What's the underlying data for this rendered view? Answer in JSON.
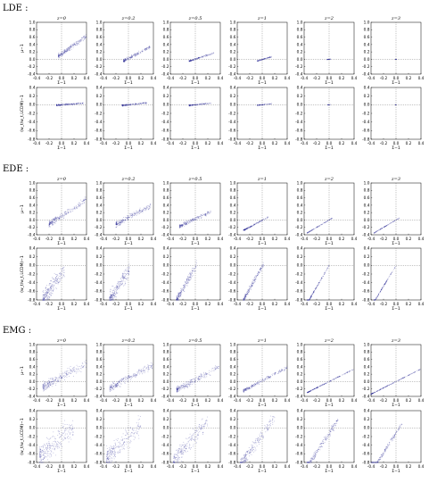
{
  "figure": {
    "sections": [
      {
        "label": "LDE :",
        "z_labels": [
          "z=0",
          "z=0.2",
          "z=0.5",
          "z=1",
          "z=2",
          "z=3"
        ]
      },
      {
        "label": "EDE :",
        "z_labels": [
          "z=0",
          "z=0.2",
          "z=0.5",
          "z=1",
          "z=2",
          "z=3"
        ]
      },
      {
        "label": "EMG :",
        "z_labels": [
          "z=0",
          "z=0.2",
          "z=0.5",
          "z=1",
          "z=2",
          "z=3"
        ]
      }
    ],
    "x_label": "Σ−1",
    "y_label_top": "μ−1",
    "y_label_bottom": "(w_t/w_t,LCDM)−1",
    "point_color": "#1a1a8c"
  },
  "chart_data": {
    "type": "scatter",
    "xlim": [
      -0.4,
      0.4
    ],
    "x_ticks": [
      "-0.4",
      "-0.2",
      "0.0",
      "0.2",
      "0.4"
    ],
    "ylim_top": [
      -0.4,
      1.0
    ],
    "y_ticks_top": [
      "-0.4",
      "-0.2",
      "0.0",
      "0.2",
      "0.4",
      "0.6",
      "0.8",
      "1.0"
    ],
    "ylim_bottom": [
      -0.8,
      0.4
    ],
    "y_ticks_bottom": [
      "-0.8",
      "-0.6",
      "-0.4",
      "-0.2",
      "0.0",
      "0.2",
      "0.4"
    ],
    "reference_lines": {
      "x": 0,
      "y": 0
    },
    "x_label": "Σ−1",
    "panels": [
      {
        "model": "LDE",
        "row": "mu",
        "z": 0,
        "trend": {
          "x0": -0.02,
          "slope": 1.2,
          "intercept": 0.12,
          "x_range": [
            -0.05,
            0.4
          ],
          "spread": 0.06,
          "density": 220
        }
      },
      {
        "model": "LDE",
        "row": "mu",
        "z": 0.2,
        "trend": {
          "x0": -0.05,
          "slope": 0.9,
          "intercept": -0.02,
          "x_range": [
            -0.08,
            0.35
          ],
          "spread": 0.04,
          "density": 180
        }
      },
      {
        "model": "LDE",
        "row": "mu",
        "z": 0.5,
        "trend": {
          "x0": -0.08,
          "slope": 0.55,
          "intercept": -0.04,
          "x_range": [
            -0.1,
            0.3
          ],
          "spread": 0.02,
          "density": 140
        }
      },
      {
        "model": "LDE",
        "row": "mu",
        "z": 1,
        "trend": {
          "x0": -0.05,
          "slope": 0.5,
          "intercept": -0.03,
          "x_range": [
            -0.08,
            0.15
          ],
          "spread": 0.015,
          "density": 90
        }
      },
      {
        "model": "LDE",
        "row": "mu",
        "z": 2,
        "trend": {
          "x0": 0.0,
          "slope": 0.2,
          "intercept": 0.0,
          "x_range": [
            -0.03,
            0.03
          ],
          "spread": 0.005,
          "density": 30
        }
      },
      {
        "model": "LDE",
        "row": "mu",
        "z": 3,
        "trend": {
          "x0": 0.0,
          "slope": 0.1,
          "intercept": 0.0,
          "x_range": [
            -0.01,
            0.01
          ],
          "spread": 0.003,
          "density": 12
        }
      },
      {
        "model": "LDE",
        "row": "w",
        "z": 0,
        "trend": {
          "x0": 0.0,
          "slope": 0.1,
          "intercept": 0.0,
          "x_range": [
            -0.08,
            0.35
          ],
          "spread": 0.02,
          "density": 170
        }
      },
      {
        "model": "LDE",
        "row": "w",
        "z": 0.2,
        "trend": {
          "x0": 0.0,
          "slope": 0.15,
          "intercept": 0.0,
          "x_range": [
            -0.1,
            0.3
          ],
          "spread": 0.02,
          "density": 150
        }
      },
      {
        "model": "LDE",
        "row": "w",
        "z": 0.5,
        "trend": {
          "x0": 0.0,
          "slope": 0.15,
          "intercept": 0.0,
          "x_range": [
            -0.1,
            0.25
          ],
          "spread": 0.015,
          "density": 120
        }
      },
      {
        "model": "LDE",
        "row": "w",
        "z": 1,
        "trend": {
          "x0": 0.0,
          "slope": 0.15,
          "intercept": 0.0,
          "x_range": [
            -0.08,
            0.15
          ],
          "spread": 0.01,
          "density": 70
        }
      },
      {
        "model": "LDE",
        "row": "w",
        "z": 2,
        "trend": {
          "x0": 0.0,
          "slope": 0.1,
          "intercept": 0.0,
          "x_range": [
            -0.02,
            0.02
          ],
          "spread": 0.004,
          "density": 20
        }
      },
      {
        "model": "LDE",
        "row": "w",
        "z": 3,
        "trend": {
          "x0": 0.0,
          "slope": 0.1,
          "intercept": 0.0,
          "x_range": [
            -0.01,
            0.01
          ],
          "spread": 0.003,
          "density": 10
        }
      },
      {
        "model": "EDE",
        "row": "mu",
        "z": 0,
        "trend": {
          "x0": -0.05,
          "slope": 1.1,
          "intercept": 0.05,
          "x_range": [
            -0.2,
            0.4
          ],
          "spread": 0.08,
          "density": 240
        }
      },
      {
        "model": "EDE",
        "row": "mu",
        "z": 0.2,
        "trend": {
          "x0": -0.05,
          "slope": 0.9,
          "intercept": 0.02,
          "x_range": [
            -0.2,
            0.35
          ],
          "spread": 0.07,
          "density": 230
        }
      },
      {
        "model": "EDE",
        "row": "mu",
        "z": 0.5,
        "trend": {
          "x0": -0.1,
          "slope": 0.8,
          "intercept": -0.05,
          "x_range": [
            -0.25,
            0.25
          ],
          "spread": 0.05,
          "density": 200
        }
      },
      {
        "model": "EDE",
        "row": "mu",
        "z": 1,
        "trend": {
          "x0": -0.1,
          "slope": 0.9,
          "intercept": -0.1,
          "x_range": [
            -0.3,
            0.1
          ],
          "spread": 0.02,
          "density": 150
        }
      },
      {
        "model": "EDE",
        "row": "mu",
        "z": 2,
        "trend": {
          "x0": -0.1,
          "slope": 1.0,
          "intercept": -0.1,
          "x_range": [
            -0.35,
            0.05
          ],
          "spread": 0.008,
          "density": 110
        }
      },
      {
        "model": "EDE",
        "row": "mu",
        "z": 3,
        "trend": {
          "x0": -0.1,
          "slope": 1.0,
          "intercept": -0.1,
          "x_range": [
            -0.35,
            0.05
          ],
          "spread": 0.006,
          "density": 100
        }
      },
      {
        "model": "EDE",
        "row": "w",
        "z": 0,
        "trend": {
          "x0": -0.1,
          "slope": 2.0,
          "intercept": -0.4,
          "x_range": [
            -0.3,
            0.05
          ],
          "spread": 0.18,
          "density": 260
        }
      },
      {
        "model": "EDE",
        "row": "w",
        "z": 0.2,
        "trend": {
          "x0": -0.1,
          "slope": 2.2,
          "intercept": -0.35,
          "x_range": [
            -0.3,
            0.02
          ],
          "spread": 0.15,
          "density": 250
        }
      },
      {
        "model": "EDE",
        "row": "w",
        "z": 0.5,
        "trend": {
          "x0": -0.1,
          "slope": 2.5,
          "intercept": -0.3,
          "x_range": [
            -0.3,
            0.02
          ],
          "spread": 0.1,
          "density": 230
        }
      },
      {
        "model": "EDE",
        "row": "w",
        "z": 1,
        "trend": {
          "x0": -0.1,
          "slope": 2.6,
          "intercept": -0.28,
          "x_range": [
            -0.3,
            0.02
          ],
          "spread": 0.06,
          "density": 200
        }
      },
      {
        "model": "EDE",
        "row": "w",
        "z": 2,
        "trend": {
          "x0": -0.1,
          "slope": 2.5,
          "intercept": -0.25,
          "x_range": [
            -0.35,
            0.0
          ],
          "spread": 0.02,
          "density": 160
        }
      },
      {
        "model": "EDE",
        "row": "w",
        "z": 3,
        "trend": {
          "x0": -0.1,
          "slope": 2.4,
          "intercept": -0.24,
          "x_range": [
            -0.35,
            0.0
          ],
          "spread": 0.015,
          "density": 140
        }
      },
      {
        "model": "EMG",
        "row": "mu",
        "z": 0,
        "trend": {
          "x0": -0.05,
          "slope": 0.9,
          "intercept": 0.08,
          "x_range": [
            -0.3,
            0.4
          ],
          "spread": 0.12,
          "density": 260
        }
      },
      {
        "model": "EMG",
        "row": "mu",
        "z": 0.2,
        "trend": {
          "x0": -0.05,
          "slope": 0.9,
          "intercept": 0.05,
          "x_range": [
            -0.3,
            0.4
          ],
          "spread": 0.1,
          "density": 250
        }
      },
      {
        "model": "EMG",
        "row": "mu",
        "z": 0.5,
        "trend": {
          "x0": -0.05,
          "slope": 0.9,
          "intercept": 0.0,
          "x_range": [
            -0.3,
            0.4
          ],
          "spread": 0.08,
          "density": 240
        }
      },
      {
        "model": "EMG",
        "row": "mu",
        "z": 1,
        "trend": {
          "x0": -0.05,
          "slope": 0.9,
          "intercept": -0.02,
          "x_range": [
            -0.3,
            0.4
          ],
          "spread": 0.04,
          "density": 220
        }
      },
      {
        "model": "EMG",
        "row": "mu",
        "z": 2,
        "trend": {
          "x0": 0.0,
          "slope": 0.85,
          "intercept": 0.0,
          "x_range": [
            -0.35,
            0.4
          ],
          "spread": 0.012,
          "density": 200
        }
      },
      {
        "model": "EMG",
        "row": "mu",
        "z": 3,
        "trend": {
          "x0": 0.0,
          "slope": 0.85,
          "intercept": 0.0,
          "x_range": [
            -0.4,
            0.4
          ],
          "spread": 0.008,
          "density": 190
        }
      },
      {
        "model": "EMG",
        "row": "w",
        "z": 0,
        "trend": {
          "x0": -0.1,
          "slope": 1.2,
          "intercept": -0.35,
          "x_range": [
            -0.35,
            0.2
          ],
          "spread": 0.25,
          "density": 260
        }
      },
      {
        "model": "EMG",
        "row": "w",
        "z": 0.2,
        "trend": {
          "x0": -0.1,
          "slope": 1.4,
          "intercept": -0.35,
          "x_range": [
            -0.35,
            0.2
          ],
          "spread": 0.22,
          "density": 250
        }
      },
      {
        "model": "EMG",
        "row": "w",
        "z": 0.5,
        "trend": {
          "x0": -0.1,
          "slope": 1.7,
          "intercept": -0.35,
          "x_range": [
            -0.35,
            0.2
          ],
          "spread": 0.18,
          "density": 240
        }
      },
      {
        "model": "EMG",
        "row": "w",
        "z": 1,
        "trend": {
          "x0": -0.1,
          "slope": 2.0,
          "intercept": -0.35,
          "x_range": [
            -0.35,
            0.2
          ],
          "spread": 0.12,
          "density": 230
        }
      },
      {
        "model": "EMG",
        "row": "w",
        "z": 2,
        "trend": {
          "x0": -0.1,
          "slope": 2.2,
          "intercept": -0.35,
          "x_range": [
            -0.35,
            0.15
          ],
          "spread": 0.08,
          "density": 220
        }
      },
      {
        "model": "EMG",
        "row": "w",
        "z": 3,
        "trend": {
          "x0": -0.1,
          "slope": 2.3,
          "intercept": -0.35,
          "x_range": [
            -0.4,
            0.1
          ],
          "spread": 0.05,
          "density": 210
        }
      }
    ]
  }
}
